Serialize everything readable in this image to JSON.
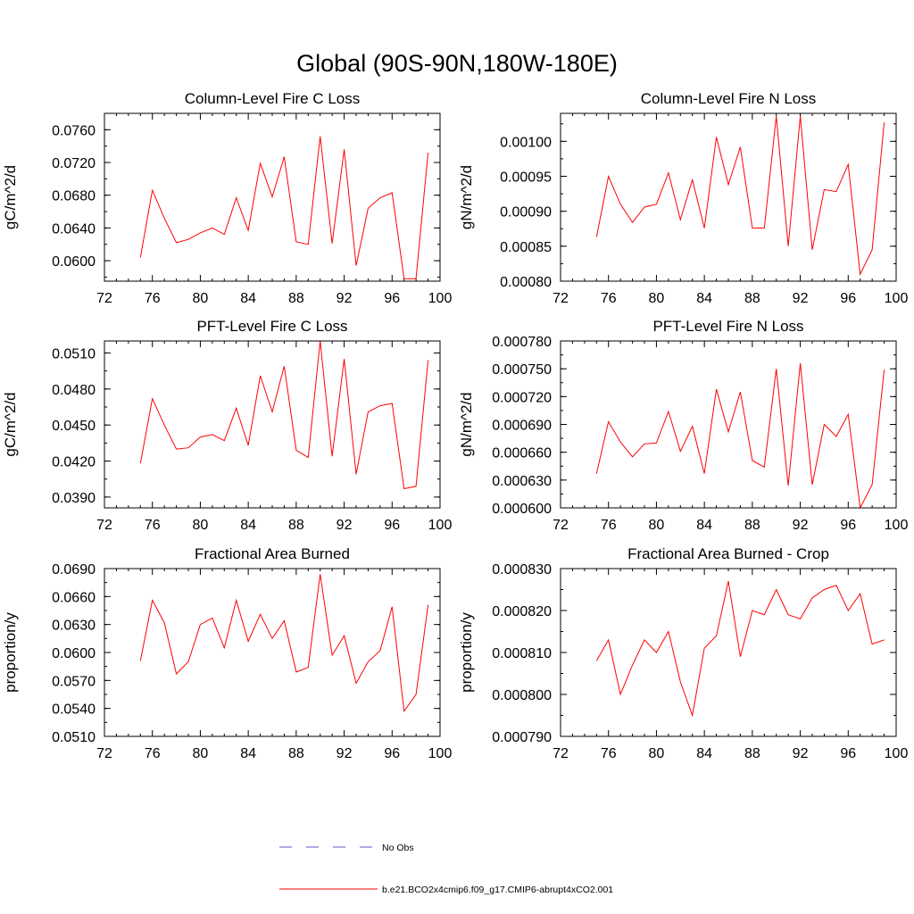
{
  "page_title": "Global (90S-90N,180W-180E)",
  "chart_data": [
    {
      "type": "line",
      "title": "Column-Level Fire C Loss",
      "ylabel": "gC/m^2/d",
      "xlabel": "",
      "xlim": [
        72,
        100
      ],
      "xticks": [
        "72",
        "76",
        "80",
        "84",
        "88",
        "92",
        "96",
        "100"
      ],
      "ylim": [
        0.0575,
        0.078
      ],
      "yticks": [
        "0.0600",
        "0.0640",
        "0.0680",
        "0.0720",
        "0.0760"
      ],
      "series": [
        {
          "name": "b.e21.BCO2x4cmip6.f09_g17.CMIP6-abrupt4xCO2.001",
          "color": "#ff0000",
          "x": [
            75,
            76,
            77,
            78,
            79,
            80,
            81,
            82,
            83,
            84,
            85,
            86,
            87,
            88,
            89,
            90,
            91,
            92,
            93,
            94,
            95,
            96,
            97,
            98,
            99
          ],
          "values": [
            0.0604,
            0.0686,
            0.0652,
            0.0622,
            0.0626,
            0.0634,
            0.064,
            0.0632,
            0.0677,
            0.0637,
            0.0719,
            0.0678,
            0.0727,
            0.0623,
            0.062,
            0.0752,
            0.0621,
            0.0736,
            0.0594,
            0.0664,
            0.0677,
            0.0683,
            0.0578,
            0.0578,
            0.0732
          ]
        }
      ]
    },
    {
      "type": "line",
      "title": "Column-Level Fire N Loss",
      "ylabel": "gN/m^2/d",
      "xlabel": "",
      "xlim": [
        72,
        100
      ],
      "xticks": [
        "72",
        "76",
        "80",
        "84",
        "88",
        "92",
        "96",
        "100"
      ],
      "ylim": [
        0.0008,
        0.00104
      ],
      "yticks": [
        "0.00080",
        "0.00085",
        "0.00090",
        "0.00095",
        "0.00100"
      ],
      "series": [
        {
          "name": "b.e21.BCO2x4cmip6.f09_g17.CMIP6-abrupt4xCO2.001",
          "color": "#ff0000",
          "x": [
            75,
            76,
            77,
            78,
            79,
            80,
            81,
            82,
            83,
            84,
            85,
            86,
            87,
            88,
            89,
            90,
            91,
            92,
            93,
            94,
            95,
            96,
            97,
            98,
            99
          ],
          "values": [
            0.000863,
            0.00095,
            0.00091,
            0.000884,
            0.000906,
            0.00091,
            0.000955,
            0.000888,
            0.000945,
            0.000876,
            0.001006,
            0.000938,
            0.000992,
            0.000876,
            0.000876,
            0.001036,
            0.00085,
            0.001036,
            0.000845,
            0.000931,
            0.000928,
            0.000967,
            0.00081,
            0.000845,
            0.001027
          ]
        }
      ]
    },
    {
      "type": "line",
      "title": "PFT-Level Fire C Loss",
      "ylabel": "gC/m^2/d",
      "xlabel": "",
      "xlim": [
        72,
        100
      ],
      "xticks": [
        "72",
        "76",
        "80",
        "84",
        "88",
        "92",
        "96",
        "100"
      ],
      "ylim": [
        0.0381,
        0.052
      ],
      "yticks": [
        "0.0390",
        "0.0420",
        "0.0450",
        "0.0480",
        "0.0510"
      ],
      "series": [
        {
          "name": "b.e21.BCO2x4cmip6.f09_g17.CMIP6-abrupt4xCO2.001",
          "color": "#ff0000",
          "x": [
            75,
            76,
            77,
            78,
            79,
            80,
            81,
            82,
            83,
            84,
            85,
            86,
            87,
            88,
            89,
            90,
            91,
            92,
            93,
            94,
            95,
            96,
            97,
            98,
            99
          ],
          "values": [
            0.0418,
            0.0472,
            0.045,
            0.043,
            0.0431,
            0.044,
            0.0442,
            0.0437,
            0.0464,
            0.0433,
            0.0491,
            0.0461,
            0.0499,
            0.0429,
            0.0423,
            0.052,
            0.0424,
            0.0505,
            0.0409,
            0.0461,
            0.0466,
            0.0468,
            0.0397,
            0.0399,
            0.0504
          ]
        }
      ]
    },
    {
      "type": "line",
      "title": "PFT-Level Fire N Loss",
      "ylabel": "gN/m^2/d",
      "xlabel": "",
      "xlim": [
        72,
        100
      ],
      "xticks": [
        "72",
        "76",
        "80",
        "84",
        "88",
        "92",
        "96",
        "100"
      ],
      "ylim": [
        0.0006,
        0.00078
      ],
      "yticks": [
        "0.000600",
        "0.000630",
        "0.000660",
        "0.000690",
        "0.000720",
        "0.000750",
        "0.000780"
      ],
      "series": [
        {
          "name": "b.e21.BCO2x4cmip6.f09_g17.CMIP6-abrupt4xCO2.001",
          "color": "#ff0000",
          "x": [
            75,
            76,
            77,
            78,
            79,
            80,
            81,
            82,
            83,
            84,
            85,
            86,
            87,
            88,
            89,
            90,
            91,
            92,
            93,
            94,
            95,
            96,
            97,
            98,
            99
          ],
          "values": [
            0.000637,
            0.000693,
            0.000671,
            0.000655,
            0.000669,
            0.00067,
            0.000704,
            0.000661,
            0.000688,
            0.000637,
            0.000728,
            0.000682,
            0.000725,
            0.000651,
            0.000644,
            0.00075,
            0.000624,
            0.000756,
            0.000625,
            0.00069,
            0.000677,
            0.000701,
            0.0006,
            0.000625,
            0.000749
          ]
        }
      ]
    },
    {
      "type": "line",
      "title": "Fractional Area Burned",
      "ylabel": "proportion/y",
      "xlabel": "",
      "xlim": [
        72,
        100
      ],
      "xticks": [
        "72",
        "76",
        "80",
        "84",
        "88",
        "92",
        "96",
        "100"
      ],
      "ylim": [
        0.051,
        0.069
      ],
      "yticks": [
        "0.0510",
        "0.0540",
        "0.0570",
        "0.0600",
        "0.0630",
        "0.0660",
        "0.0690"
      ],
      "series": [
        {
          "name": "b.e21.BCO2x4cmip6.f09_g17.CMIP6-abrupt4xCO2.001",
          "color": "#ff0000",
          "x": [
            75,
            76,
            77,
            78,
            79,
            80,
            81,
            82,
            83,
            84,
            85,
            86,
            87,
            88,
            89,
            90,
            91,
            92,
            93,
            94,
            95,
            96,
            97,
            98,
            99
          ],
          "values": [
            0.0591,
            0.0656,
            0.0632,
            0.0577,
            0.059,
            0.063,
            0.0637,
            0.0605,
            0.0656,
            0.0612,
            0.0641,
            0.0615,
            0.0634,
            0.0579,
            0.0584,
            0.0684,
            0.0597,
            0.0618,
            0.0567,
            0.059,
            0.0602,
            0.0649,
            0.0537,
            0.0555,
            0.0651
          ]
        }
      ]
    },
    {
      "type": "line",
      "title": "Fractional Area Burned - Crop",
      "ylabel": "proportion/y",
      "xlabel": "",
      "xlim": [
        72,
        100
      ],
      "xticks": [
        "72",
        "76",
        "80",
        "84",
        "88",
        "92",
        "96",
        "100"
      ],
      "ylim": [
        0.00079,
        0.00083
      ],
      "yticks": [
        "0.000790",
        "0.000800",
        "0.000810",
        "0.000820",
        "0.000830"
      ],
      "series": [
        {
          "name": "b.e21.BCO2x4cmip6.f09_g17.CMIP6-abrupt4xCO2.001",
          "color": "#ff0000",
          "x": [
            75,
            76,
            77,
            78,
            79,
            80,
            81,
            82,
            83,
            84,
            85,
            86,
            87,
            88,
            89,
            90,
            91,
            92,
            93,
            94,
            95,
            96,
            97,
            98,
            99
          ],
          "values": [
            0.000808,
            0.000813,
            0.0008,
            0.000807,
            0.000813,
            0.00081,
            0.000815,
            0.000803,
            0.000795,
            0.000811,
            0.000814,
            0.000827,
            0.000809,
            0.00082,
            0.000819,
            0.000825,
            0.000819,
            0.000818,
            0.000823,
            0.000825,
            0.000826,
            0.00082,
            0.000824,
            0.000812,
            0.000813
          ]
        }
      ]
    }
  ],
  "legend": [
    {
      "label": "No Obs",
      "color": "#5a5ac8",
      "dash": "dashed"
    },
    {
      "label": "b.e21.BCO2x4cmip6.f09_g17.CMIP6-abrupt4xCO2.001",
      "color": "#ff0000",
      "dash": "solid"
    }
  ]
}
